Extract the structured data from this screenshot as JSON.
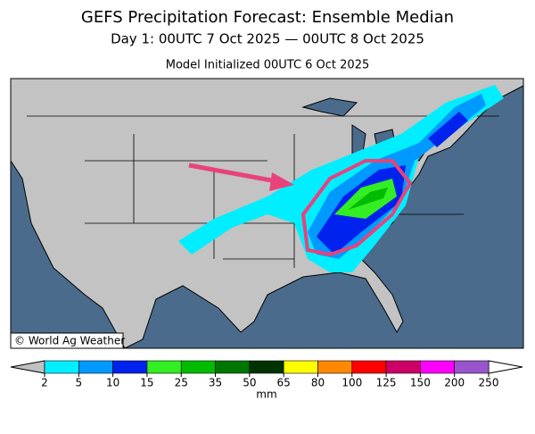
{
  "header": {
    "title": "GEFS Precipitation Forecast: Ensemble Median",
    "subtitle": "Day 1: 00UTC 7 Oct 2025 — 00UTC 8 Oct 2025",
    "init": "Model Initialized 00UTC 6 Oct 2025"
  },
  "map": {
    "credit": "© World Ag Weather"
  },
  "legend": {
    "ticks": [
      2,
      5,
      10,
      15,
      25,
      35,
      50,
      65,
      80,
      100,
      125,
      150,
      200,
      250
    ],
    "colors": [
      "#00eeff",
      "#0099ff",
      "#0022ee",
      "#33ee22",
      "#00bb00",
      "#007700",
      "#003300",
      "#ffff00",
      "#ff8800",
      "#ff0000",
      "#cc0066",
      "#ff00ff",
      "#9955cc"
    ],
    "under_color": "#c0c0c0",
    "over_color": "#ffffff",
    "unit": "mm"
  }
}
